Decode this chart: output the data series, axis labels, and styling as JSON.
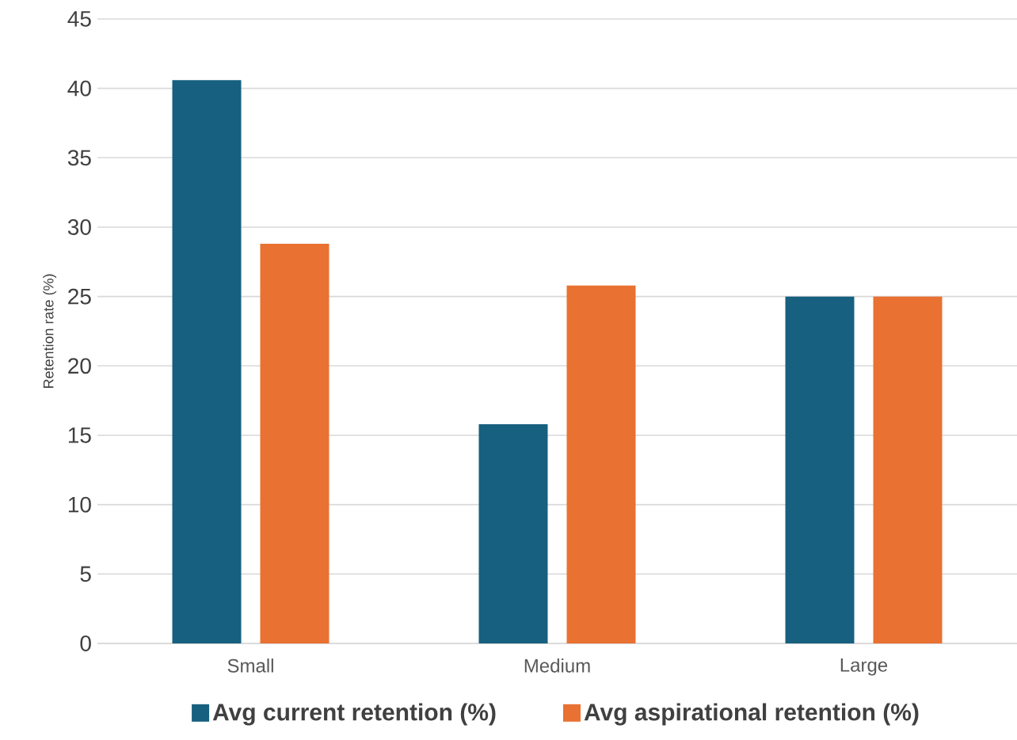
{
  "chart_data": {
    "type": "bar",
    "ylabel": "Retention rate (%)",
    "categories": [
      "Small",
      "Medium",
      "Large"
    ],
    "series": [
      {
        "name": "Avg current retention (%)",
        "color": "#17607f",
        "values": [
          40.6,
          15.8,
          25
        ]
      },
      {
        "name": "Avg aspirational retention (%)",
        "color": "#e97132",
        "values": [
          28.8,
          25.8,
          25
        ]
      }
    ],
    "ylim": [
      0,
      45
    ],
    "yticks": [
      0,
      5,
      10,
      15,
      20,
      25,
      30,
      35,
      40,
      45
    ],
    "grid": "y",
    "legend": "bottom"
  }
}
